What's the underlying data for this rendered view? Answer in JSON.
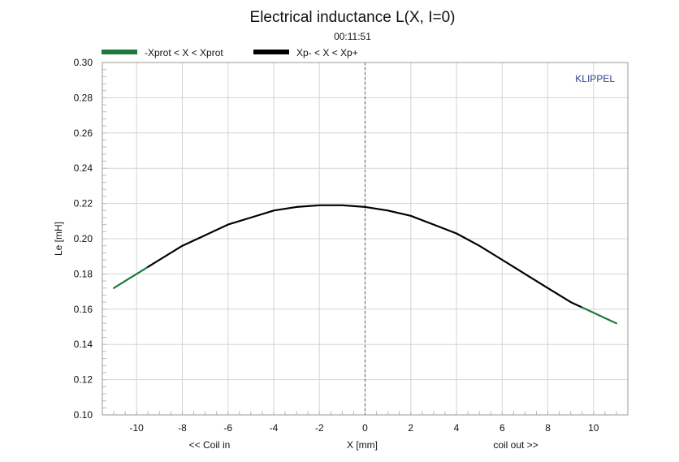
{
  "chart_data": {
    "type": "line",
    "title": "Electrical inductance L(X, I=0)",
    "subtitle": "00:11:51",
    "watermark": "KLIPPEL",
    "xlabel": "X [mm]",
    "x_left_note": "<< Coil in",
    "x_right_note": "coil out >>",
    "ylabel": "Le [mH]",
    "xlim": [
      -11.5,
      11.5
    ],
    "ylim": [
      0.1,
      0.3
    ],
    "x_ticks": [
      -10,
      -8,
      -6,
      -4,
      -2,
      0,
      2,
      4,
      6,
      8,
      10
    ],
    "x_tick_labels": [
      "-10",
      "-8",
      "-6",
      "-4",
      "-2",
      "0",
      "2",
      "4",
      "6",
      "8",
      "10"
    ],
    "y_ticks": [
      0.1,
      0.12,
      0.14,
      0.16,
      0.18,
      0.2,
      0.22,
      0.24,
      0.26,
      0.28,
      0.3
    ],
    "y_tick_labels": [
      "0.10",
      "0.12",
      "0.14",
      "0.16",
      "0.18",
      "0.20",
      "0.22",
      "0.24",
      "0.26",
      "0.28",
      "0.30"
    ],
    "grid": true,
    "vline_x": 0,
    "legend_position": "top-left",
    "series": [
      {
        "name": "-Xprot < X < Xprot",
        "color": "#1e7a3c",
        "x": [
          -11.0,
          -10.5,
          -10.0,
          -9.5
        ],
        "y": [
          0.172,
          0.176,
          0.18,
          0.184
        ]
      },
      {
        "name": "Xp- < X < Xp+",
        "color": "#000000",
        "x": [
          -9.5,
          -9.0,
          -8.0,
          -7.0,
          -6.0,
          -5.0,
          -4.0,
          -3.0,
          -2.0,
          -1.0,
          0.0,
          1.0,
          2.0,
          3.0,
          4.0,
          5.0,
          6.0,
          7.0,
          8.0,
          9.0,
          9.5
        ],
        "y": [
          0.184,
          0.188,
          0.196,
          0.202,
          0.208,
          0.212,
          0.216,
          0.218,
          0.219,
          0.219,
          0.218,
          0.216,
          0.213,
          0.208,
          0.203,
          0.196,
          0.188,
          0.18,
          0.172,
          0.164,
          0.161
        ]
      },
      {
        "name": "",
        "color": "#1e7a3c",
        "x": [
          9.5,
          10.0,
          10.5,
          11.0
        ],
        "y": [
          0.161,
          0.158,
          0.155,
          0.152
        ]
      }
    ]
  }
}
